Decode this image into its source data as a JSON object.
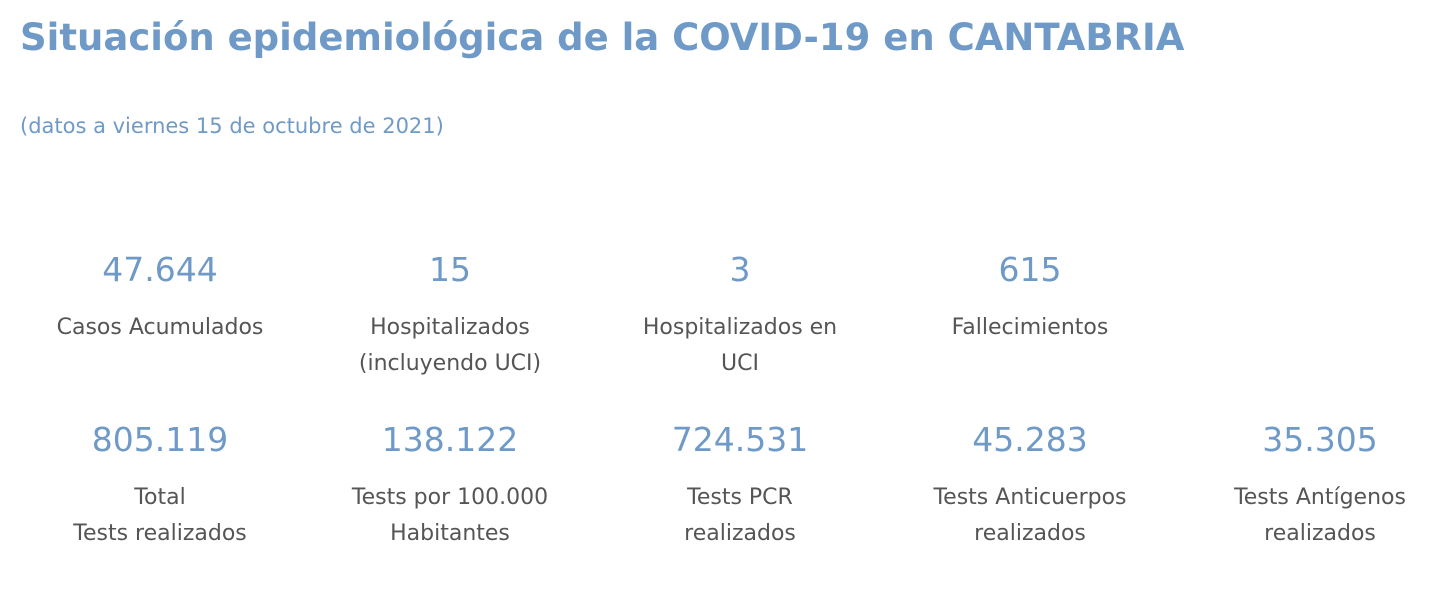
{
  "header": {
    "title": "Situación epidemiológica de la COVID-19 en CANTABRIA",
    "subtitle": "(datos a viernes 15 de octubre de 2021)"
  },
  "stats_row_1": [
    {
      "value": "47.644",
      "label": "Casos Acumulados"
    },
    {
      "value": "15",
      "label": "Hospitalizados\n(incluyendo UCI)"
    },
    {
      "value": "3",
      "label": "Hospitalizados en\nUCI"
    },
    {
      "value": "615",
      "label": "Fallecimientos"
    }
  ],
  "stats_row_2": [
    {
      "value": "805.119",
      "label": "Total\nTests realizados"
    },
    {
      "value": "138.122",
      "label": "Tests por 100.000\nHabitantes"
    },
    {
      "value": "724.531",
      "label": " Tests PCR\nrealizados"
    },
    {
      "value": "45.283",
      "label": "Tests Anticuerpos\nrealizados"
    },
    {
      "value": "35.305",
      "label": "Tests Antígenos\nrealizados"
    }
  ],
  "colors": {
    "accent": "#6f9ac7",
    "label_text": "#555555",
    "background": "#ffffff"
  }
}
